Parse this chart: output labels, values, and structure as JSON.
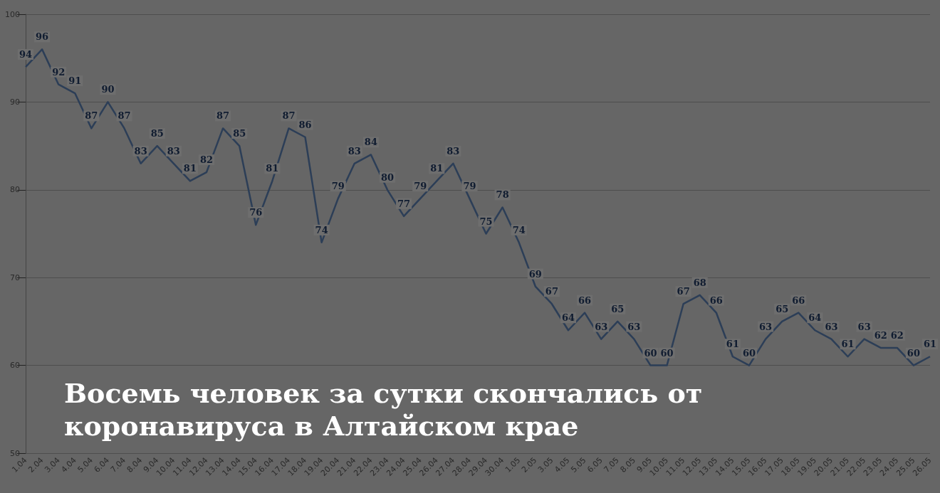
{
  "chart_data": {
    "type": "line",
    "title": "Восемь человек за сутки скончались от коронавируса в Алтайском крае",
    "categories": [
      "1.04",
      "2.04",
      "3.04",
      "4.04",
      "5.04",
      "6.04",
      "7.04",
      "8.04",
      "9.04",
      "10.04",
      "11.04",
      "12.04",
      "13.04",
      "14.04",
      "15.04",
      "16.04",
      "17.04",
      "18.04",
      "19.04",
      "20.04",
      "21.04",
      "22.04",
      "23.04",
      "24.04",
      "25.04",
      "26.04",
      "27.04",
      "28.04",
      "29.04",
      "30.04",
      "1.05",
      "2.05",
      "3.05",
      "4.05",
      "5.05",
      "6.05",
      "7.05",
      "8.05",
      "9.05",
      "10.05",
      "11.05",
      "12.05",
      "13.05",
      "14.05",
      "15.05",
      "16.05",
      "17.05",
      "18.05",
      "19.05",
      "20.05",
      "21.05",
      "22.05",
      "23.05",
      "24.05",
      "25.05",
      "26.05"
    ],
    "series": [
      {
        "color": "#2c3e57",
        "values": [
          94,
          96,
          92,
          91,
          87,
          90,
          87,
          83,
          85,
          83,
          81,
          82,
          87,
          85,
          76,
          81,
          87,
          86,
          74,
          79,
          83,
          84,
          80,
          77,
          79,
          81,
          83,
          79,
          75,
          78,
          74,
          69,
          67,
          64,
          66,
          63,
          65,
          63,
          60,
          60,
          67,
          68,
          66,
          61,
          60,
          63,
          65,
          66,
          64,
          63,
          61,
          63,
          62,
          62,
          60,
          61
        ]
      }
    ],
    "ylim": [
      50,
      100
    ],
    "yticks": [
      50,
      60,
      70,
      80,
      90,
      100
    ],
    "grid": "y",
    "data_labels": true,
    "marker": "none",
    "line_style": "solid"
  }
}
